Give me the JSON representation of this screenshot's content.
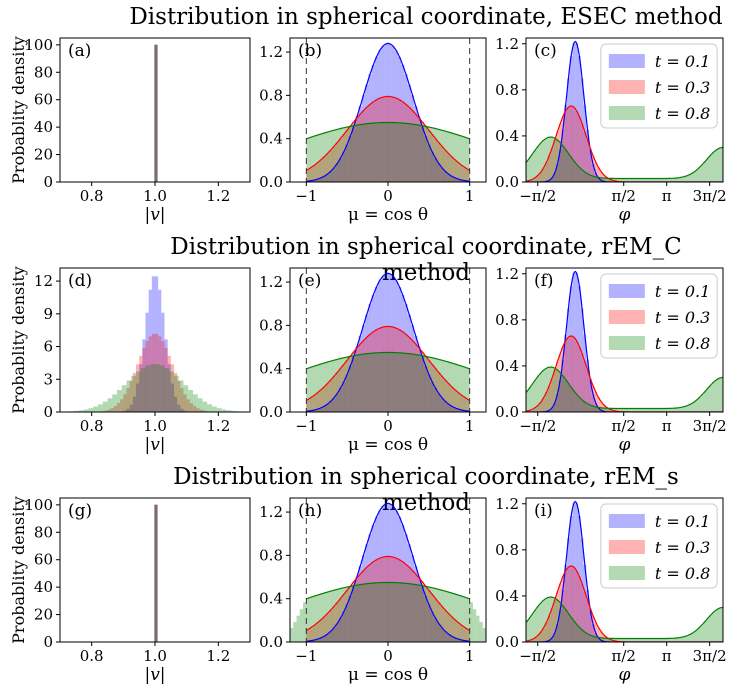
{
  "y_axis_label": "Probablity density",
  "legend_labels": [
    "t = 0.1",
    "t = 0.3",
    "t = 0.8"
  ],
  "series_colors": {
    "t = 0.1": "#0000ff",
    "t = 0.3": "#ff0000",
    "t = 0.8": "#008000"
  },
  "overlap_color": "#7f6b6b",
  "rows": [
    {
      "title": "Distribution in spherical coordinate, ESEC method"
    },
    {
      "title": "Distribution in spherical coordinate, rEM_C method"
    },
    {
      "title": "Distribution in spherical coordinate, rEM_s method"
    }
  ],
  "chart_data": [
    {
      "panel": "(a)",
      "type": "bar",
      "row": 0,
      "col": 0,
      "xlabel": "|v|",
      "xlim": [
        0.7,
        1.3
      ],
      "ylim": [
        0,
        105
      ],
      "xticks": [
        {
          "v": 0.8,
          "label": "0.8"
        },
        {
          "v": 1.0,
          "label": "1.0"
        },
        {
          "v": 1.2,
          "label": "1.2"
        }
      ],
      "yticks": [
        {
          "v": 0,
          "label": "0"
        },
        {
          "v": 20,
          "label": "20"
        },
        {
          "v": 40,
          "label": "40"
        },
        {
          "v": 60,
          "label": "60"
        },
        {
          "v": 80,
          "label": "80"
        },
        {
          "v": 100,
          "label": "100"
        }
      ],
      "series": [
        {
          "name": "t = 0.1",
          "bars": [
            [
              0.998,
              1.002,
              100
            ]
          ]
        },
        {
          "name": "t = 0.3",
          "bars": [
            [
              0.998,
              1.002,
              100
            ]
          ]
        },
        {
          "name": "t = 0.8",
          "bars": [
            [
              0.998,
              1.002,
              100
            ]
          ]
        }
      ]
    },
    {
      "panel": "(b)",
      "type": "bar",
      "row": 0,
      "col": 1,
      "xlabel": "μ = cos θ",
      "xlim": [
        -1.2,
        1.2
      ],
      "ylim": [
        0,
        1.33
      ],
      "vlines": [
        -1,
        1
      ],
      "xticks": [
        {
          "v": -1,
          "label": "−1"
        },
        {
          "v": 0,
          "label": "0"
        },
        {
          "v": 1,
          "label": "1"
        }
      ],
      "yticks": [
        {
          "v": 0,
          "label": "0.0"
        },
        {
          "v": 0.4,
          "label": "0.4"
        },
        {
          "v": 0.8,
          "label": "0.8"
        },
        {
          "v": 1.2,
          "label": "1.2"
        }
      ],
      "series": [
        {
          "name": "t = 0.1",
          "curve": "gauss",
          "peak": 1.28,
          "sigma": 0.31
        },
        {
          "name": "t = 0.3",
          "curve": "gauss",
          "peak": 0.79,
          "sigma": 0.5
        },
        {
          "name": "t = 0.8",
          "curve": "gauss",
          "peak": 0.55,
          "sigma": 1.25
        }
      ]
    },
    {
      "panel": "(c)",
      "type": "bar",
      "row": 0,
      "col": 2,
      "xlabel": "φ",
      "xlim": [
        -2.0,
        5.2
      ],
      "ylim": [
        0,
        1.25
      ],
      "legend": "top-right",
      "xticks": [
        {
          "v": -1.571,
          "label": "−π/2"
        },
        {
          "v": 1.571,
          "label": "π/2"
        },
        {
          "v": 3.142,
          "label": "π"
        },
        {
          "v": 4.712,
          "label": "3π/2"
        }
      ],
      "yticks": [
        {
          "v": 0,
          "label": "0.0"
        },
        {
          "v": 0.4,
          "label": "0.4"
        },
        {
          "v": 0.8,
          "label": "0.8"
        },
        {
          "v": 1.2,
          "label": "1.2"
        }
      ],
      "series": [
        {
          "name": "t = 0.1",
          "curve": "phi",
          "peak": 1.22,
          "mu": -0.2,
          "sigma": 0.32
        },
        {
          "name": "t = 0.3",
          "curve": "phi",
          "peak": 0.66,
          "mu": -0.35,
          "sigma": 0.55
        },
        {
          "name": "t = 0.8",
          "curve": "phi2",
          "peak": 0.36,
          "mu": -1.1,
          "sigma": 0.65,
          "peak2": 0.27,
          "mu2": 5.2,
          "sigma2": 0.6,
          "base": 0.03
        }
      ]
    },
    {
      "panel": "(d)",
      "type": "bar",
      "row": 1,
      "col": 0,
      "xlabel": "|v|",
      "xlim": [
        0.7,
        1.3
      ],
      "ylim": [
        0,
        13.2
      ],
      "xticks": [
        {
          "v": 0.8,
          "label": "0.8"
        },
        {
          "v": 1.0,
          "label": "1.0"
        },
        {
          "v": 1.2,
          "label": "1.2"
        }
      ],
      "yticks": [
        {
          "v": 0,
          "label": "0"
        },
        {
          "v": 3,
          "label": "3"
        },
        {
          "v": 6,
          "label": "6"
        },
        {
          "v": 9,
          "label": "9"
        },
        {
          "v": 12,
          "label": "12"
        }
      ],
      "series": [
        {
          "name": "t = 0.1",
          "curve": "hist",
          "mu": 1.0,
          "sigma": 0.031,
          "peak": 12.6,
          "binw": 0.01
        },
        {
          "name": "t = 0.3",
          "curve": "hist",
          "mu": 1.0,
          "sigma": 0.055,
          "peak": 7.2,
          "binw": 0.01
        },
        {
          "name": "t = 0.8",
          "curve": "hist",
          "mu": 1.0,
          "sigma": 0.09,
          "peak": 4.4,
          "binw": 0.015
        }
      ]
    },
    {
      "panel": "(e)",
      "type": "bar",
      "row": 1,
      "col": 1,
      "xlabel": "μ = cos θ",
      "xlim": [
        -1.2,
        1.2
      ],
      "ylim": [
        0,
        1.33
      ],
      "vlines": [
        -1,
        1
      ],
      "xticks": [
        {
          "v": -1,
          "label": "−1"
        },
        {
          "v": 0,
          "label": "0"
        },
        {
          "v": 1,
          "label": "1"
        }
      ],
      "yticks": [
        {
          "v": 0,
          "label": "0.0"
        },
        {
          "v": 0.4,
          "label": "0.4"
        },
        {
          "v": 0.8,
          "label": "0.8"
        },
        {
          "v": 1.2,
          "label": "1.2"
        }
      ],
      "series": [
        {
          "name": "t = 0.1",
          "curve": "gauss",
          "peak": 1.28,
          "sigma": 0.31
        },
        {
          "name": "t = 0.3",
          "curve": "gauss",
          "peak": 0.79,
          "sigma": 0.5
        },
        {
          "name": "t = 0.8",
          "curve": "gauss",
          "peak": 0.55,
          "sigma": 1.25
        }
      ]
    },
    {
      "panel": "(f)",
      "type": "bar",
      "row": 1,
      "col": 2,
      "xlabel": "φ",
      "xlim": [
        -2.0,
        5.2
      ],
      "ylim": [
        0,
        1.25
      ],
      "legend": "top-right",
      "xticks": [
        {
          "v": -1.571,
          "label": "−π/2"
        },
        {
          "v": 1.571,
          "label": "π/2"
        },
        {
          "v": 3.142,
          "label": "π"
        },
        {
          "v": 4.712,
          "label": "3π/2"
        }
      ],
      "yticks": [
        {
          "v": 0,
          "label": "0.0"
        },
        {
          "v": 0.4,
          "label": "0.4"
        },
        {
          "v": 0.8,
          "label": "0.8"
        },
        {
          "v": 1.2,
          "label": "1.2"
        }
      ],
      "series": [
        {
          "name": "t = 0.1",
          "curve": "phi",
          "peak": 1.22,
          "mu": -0.2,
          "sigma": 0.32
        },
        {
          "name": "t = 0.3",
          "curve": "phi",
          "peak": 0.66,
          "mu": -0.35,
          "sigma": 0.55
        },
        {
          "name": "t = 0.8",
          "curve": "phi2",
          "peak": 0.36,
          "mu": -1.1,
          "sigma": 0.65,
          "peak2": 0.27,
          "mu2": 5.2,
          "sigma2": 0.6,
          "base": 0.03
        }
      ]
    },
    {
      "panel": "(g)",
      "type": "bar",
      "row": 2,
      "col": 0,
      "xlabel": "|v|",
      "xlim": [
        0.7,
        1.3
      ],
      "ylim": [
        0,
        105
      ],
      "xticks": [
        {
          "v": 0.8,
          "label": "0.8"
        },
        {
          "v": 1.0,
          "label": "1.0"
        },
        {
          "v": 1.2,
          "label": "1.2"
        }
      ],
      "yticks": [
        {
          "v": 0,
          "label": "0"
        },
        {
          "v": 20,
          "label": "20"
        },
        {
          "v": 40,
          "label": "40"
        },
        {
          "v": 60,
          "label": "60"
        },
        {
          "v": 80,
          "label": "80"
        },
        {
          "v": 100,
          "label": "100"
        }
      ],
      "series": [
        {
          "name": "t = 0.1",
          "bars": [
            [
              0.998,
              1.002,
              100
            ]
          ]
        },
        {
          "name": "t = 0.3",
          "bars": [
            [
              0.998,
              1.002,
              100
            ]
          ]
        },
        {
          "name": "t = 0.8",
          "bars": [
            [
              0.998,
              1.002,
              100
            ]
          ]
        }
      ]
    },
    {
      "panel": "(h)",
      "type": "bar",
      "row": 2,
      "col": 1,
      "xlabel": "μ = cos θ",
      "xlim": [
        -1.2,
        1.2
      ],
      "ylim": [
        0,
        1.33
      ],
      "vlines": [
        -1,
        1
      ],
      "xticks": [
        {
          "v": -1,
          "label": "−1"
        },
        {
          "v": 0,
          "label": "0"
        },
        {
          "v": 1,
          "label": "1"
        }
      ],
      "yticks": [
        {
          "v": 0,
          "label": "0.0"
        },
        {
          "v": 0.4,
          "label": "0.4"
        },
        {
          "v": 0.8,
          "label": "0.8"
        },
        {
          "v": 1.2,
          "label": "1.2"
        }
      ],
      "series": [
        {
          "name": "t = 0.1",
          "curve": "gauss",
          "peak": 1.28,
          "sigma": 0.31
        },
        {
          "name": "t = 0.3",
          "curve": "gauss",
          "peak": 0.79,
          "sigma": 0.5
        },
        {
          "name": "t = 0.8",
          "curve": "gauss",
          "peak": 0.55,
          "sigma": 1.25,
          "spill": true
        }
      ]
    },
    {
      "panel": "(i)",
      "type": "bar",
      "row": 2,
      "col": 2,
      "xlabel": "φ",
      "xlim": [
        -2.0,
        5.2
      ],
      "ylim": [
        0,
        1.25
      ],
      "legend": "top-right",
      "xticks": [
        {
          "v": -1.571,
          "label": "−π/2"
        },
        {
          "v": 1.571,
          "label": "π/2"
        },
        {
          "v": 3.142,
          "label": "π"
        },
        {
          "v": 4.712,
          "label": "3π/2"
        }
      ],
      "yticks": [
        {
          "v": 0,
          "label": "0.0"
        },
        {
          "v": 0.4,
          "label": "0.4"
        },
        {
          "v": 0.8,
          "label": "0.8"
        },
        {
          "v": 1.2,
          "label": "1.2"
        }
      ],
      "series": [
        {
          "name": "t = 0.1",
          "curve": "phi",
          "peak": 1.22,
          "mu": -0.2,
          "sigma": 0.32
        },
        {
          "name": "t = 0.3",
          "curve": "phi",
          "peak": 0.66,
          "mu": -0.35,
          "sigma": 0.55
        },
        {
          "name": "t = 0.8",
          "curve": "phi2",
          "peak": 0.36,
          "mu": -1.1,
          "sigma": 0.65,
          "peak2": 0.27,
          "mu2": 5.2,
          "sigma2": 0.6,
          "base": 0.03
        }
      ]
    }
  ]
}
